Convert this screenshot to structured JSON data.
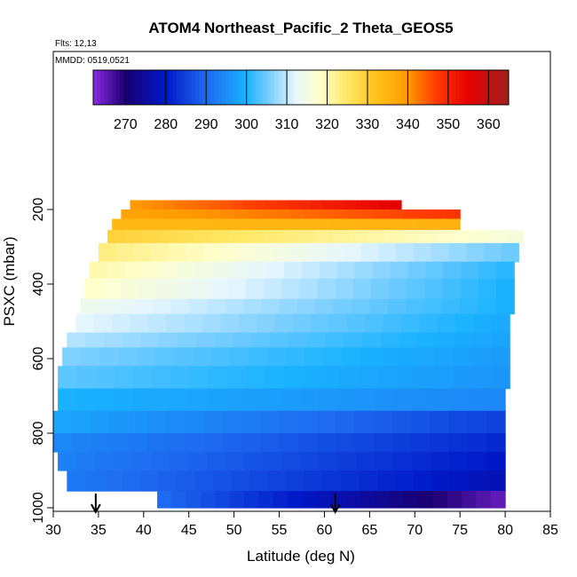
{
  "chart_data": {
    "type": "heatmap",
    "title": "ATOM4 Northeast_Pacific_2 Theta_GEOS5",
    "flights_label": "Flts: 12,13",
    "dates_label": "MMDD: 0519,0521",
    "xlabel": "Latitude (deg N)",
    "ylabel": "PSXC (mbar)",
    "xlim": [
      30,
      85
    ],
    "ylim": [
      1000,
      0
    ],
    "x_ticks": [
      "30",
      "35",
      "40",
      "45",
      "50",
      "55",
      "60",
      "65",
      "70",
      "75",
      "80",
      "85"
    ],
    "y_ticks": [
      "200",
      "400",
      "600",
      "800",
      "1000"
    ],
    "colorbar": {
      "min": 262,
      "max": 365,
      "ticks": [
        "270",
        "280",
        "290",
        "300",
        "310",
        "320",
        "330",
        "340",
        "350",
        "360"
      ],
      "stops": [
        {
          "v": 262,
          "c": "#8a2be2"
        },
        {
          "v": 270,
          "c": "#1a0070"
        },
        {
          "v": 280,
          "c": "#0018c8"
        },
        {
          "v": 290,
          "c": "#1e6af0"
        },
        {
          "v": 300,
          "c": "#1ab2ff"
        },
        {
          "v": 306,
          "c": "#7fd0ff"
        },
        {
          "v": 312,
          "c": "#e6f6ff"
        },
        {
          "v": 318,
          "c": "#ffffcc"
        },
        {
          "v": 325,
          "c": "#ffe866"
        },
        {
          "v": 332,
          "c": "#ffc21a"
        },
        {
          "v": 340,
          "c": "#ff9a00"
        },
        {
          "v": 347,
          "c": "#ff3c00"
        },
        {
          "v": 355,
          "c": "#e60000"
        },
        {
          "v": 365,
          "c": "#a02020"
        }
      ]
    },
    "arrows_at_latitude": [
      34.7,
      61.2
    ],
    "layers": [
      {
        "p": [
          175,
          200
        ],
        "lat": [
          38.5,
          68.5
        ],
        "theta": [
          340,
          355
        ]
      },
      {
        "p": [
          200,
          225
        ],
        "lat": [
          37.5,
          75.0
        ],
        "theta": [
          338,
          348
        ]
      },
      {
        "p": [
          225,
          255
        ],
        "lat": [
          36.5,
          75.0
        ],
        "theta": [
          334,
          335
        ]
      },
      {
        "p": [
          255,
          290
        ],
        "lat": [
          36.0,
          82.0
        ],
        "theta": [
          329,
          316
        ]
      },
      {
        "p": [
          290,
          340
        ],
        "lat": [
          35.0,
          81.5
        ],
        "theta": [
          323,
          305
        ]
      },
      {
        "p": [
          340,
          385
        ],
        "lat": [
          34.0,
          81.0
        ],
        "theta": [
          320,
          301
        ]
      },
      {
        "p": [
          385,
          440
        ],
        "lat": [
          33.5,
          81.0
        ],
        "theta": [
          318,
          300
        ]
      },
      {
        "p": [
          440,
          480
        ],
        "lat": [
          33.0,
          81.0
        ],
        "theta": [
          314,
          300
        ]
      },
      {
        "p": [
          480,
          530
        ],
        "lat": [
          32.5,
          80.5
        ],
        "theta": [
          312,
          299
        ]
      },
      {
        "p": [
          530,
          570
        ],
        "lat": [
          31.5,
          80.5
        ],
        "theta": [
          309,
          298
        ]
      },
      {
        "p": [
          570,
          620
        ],
        "lat": [
          31.0,
          80.5
        ],
        "theta": [
          306,
          297
        ]
      },
      {
        "p": [
          620,
          680
        ],
        "lat": [
          30.5,
          80.5
        ],
        "theta": [
          304,
          296
        ]
      },
      {
        "p": [
          680,
          740
        ],
        "lat": [
          30.5,
          80.0
        ],
        "theta": [
          300,
          294
        ]
      },
      {
        "p": [
          740,
          800
        ],
        "lat": [
          30.0,
          80.0
        ],
        "theta": [
          298,
          285
        ]
      },
      {
        "p": [
          800,
          850
        ],
        "lat": [
          30.0,
          80.0
        ],
        "theta": [
          294,
          282
        ]
      },
      {
        "p": [
          850,
          900
        ],
        "lat": [
          30.5,
          80.0
        ],
        "theta": [
          293,
          280
        ]
      },
      {
        "p": [
          900,
          955
        ],
        "lat": [
          31.5,
          80.0
        ],
        "theta": [
          292,
          278
        ]
      },
      {
        "p": [
          955,
          1000
        ],
        "lat": [
          41.5,
          80.0
        ],
        "theta": [
          290,
          265
        ]
      }
    ]
  }
}
